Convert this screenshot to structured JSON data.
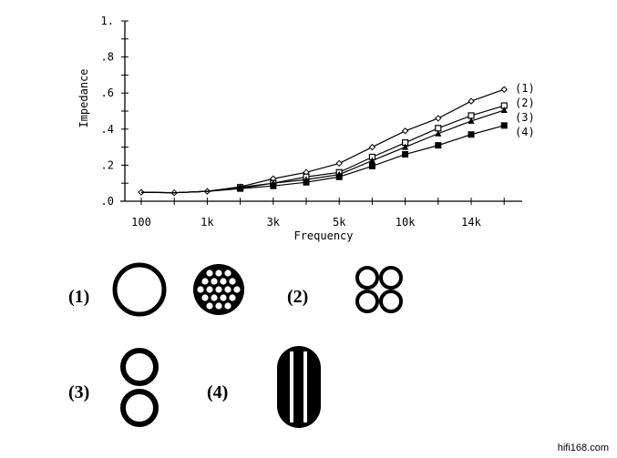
{
  "chart_data": {
    "type": "line",
    "xlabel": "Frequency",
    "ylabel": "Impedance",
    "x_tick_labels": [
      "100",
      "",
      "1k",
      "",
      "3k",
      "",
      "5k",
      "",
      "10k",
      "",
      "14k",
      ""
    ],
    "y_tick_labels": [
      ".0",
      ".2",
      ".4",
      ".6",
      ".8",
      "1."
    ],
    "ylim": [
      0,
      1
    ],
    "grid": false,
    "legend_placement": "right, at line ends",
    "series": [
      {
        "name": "(1)",
        "marker": "open-diamond",
        "values": [
          0.05,
          0.047,
          0.055,
          0.08,
          0.125,
          0.16,
          0.21,
          0.3,
          0.39,
          0.46,
          0.555,
          0.62
        ]
      },
      {
        "name": "(2)",
        "marker": "open-square",
        "values": [
          0.05,
          0.047,
          0.055,
          0.077,
          0.1,
          0.135,
          0.16,
          0.245,
          0.325,
          0.405,
          0.475,
          0.53
        ]
      },
      {
        "name": "(3)",
        "marker": "filled-star",
        "values": [
          0.05,
          0.047,
          0.055,
          0.072,
          0.1,
          0.12,
          0.148,
          0.225,
          0.3,
          0.375,
          0.445,
          0.505
        ]
      },
      {
        "name": "(4)",
        "marker": "filled-square",
        "values": [
          0.05,
          0.047,
          0.055,
          0.07,
          0.085,
          0.105,
          0.135,
          0.195,
          0.26,
          0.31,
          0.37,
          0.42
        ]
      }
    ]
  },
  "cross_sections": {
    "labels": [
      "(1)",
      "(2)",
      "(3)",
      "(4)"
    ]
  },
  "watermark": "hifi168.com"
}
